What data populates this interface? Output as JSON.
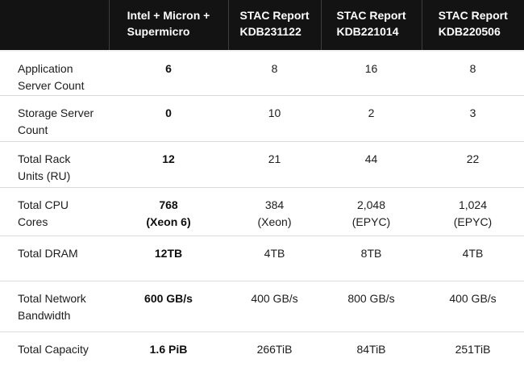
{
  "chart_data": {
    "type": "table",
    "title": "",
    "columns": [
      "",
      "Intel + Micron +\nSupermicro",
      "STAC Report\nKDB231122",
      "STAC Report\nKDB221014",
      "STAC Report\nKDB220506"
    ],
    "rows": [
      {
        "label": "Application\nServer Count",
        "values": [
          "6",
          "8",
          "16",
          "8"
        ]
      },
      {
        "label": "Storage Server\nCount",
        "values": [
          "0",
          "10",
          "2",
          "3"
        ]
      },
      {
        "label": "Total Rack\nUnits (RU)",
        "values": [
          "12",
          "21",
          "44",
          "22"
        ]
      },
      {
        "label": "Total CPU\nCores",
        "values": [
          "768\n(Xeon 6)",
          "384\n(Xeon)",
          "2,048\n(EPYC)",
          "1,024\n(EPYC)"
        ]
      },
      {
        "label": "Total DRAM",
        "values": [
          "12TB",
          "4TB",
          "8TB",
          "4TB"
        ]
      },
      {
        "label": "Total Network\nBandwidth",
        "values": [
          "600 GB/s",
          "400 GB/s",
          "800 GB/s",
          "400 GB/s"
        ]
      },
      {
        "label": "Total Capacity",
        "values": [
          "1.6 PiB",
          "266TiB",
          "84TiB",
          "251TiB"
        ]
      }
    ],
    "emphasized_column": "Intel + Micron + Supermicro",
    "layout_hints": {
      "header_style": "dark",
      "row_dividers": true,
      "column_dividers_header_only": true
    }
  },
  "colors": {
    "header_bg": "#131313",
    "header_text": "#ffffff",
    "header_divider": "#3d3d3d",
    "body_bg": "#ffffff",
    "body_text": "#1c1c1c",
    "row_divider": "#d9d9d9",
    "bottom_bar": "#cbcbcb"
  }
}
